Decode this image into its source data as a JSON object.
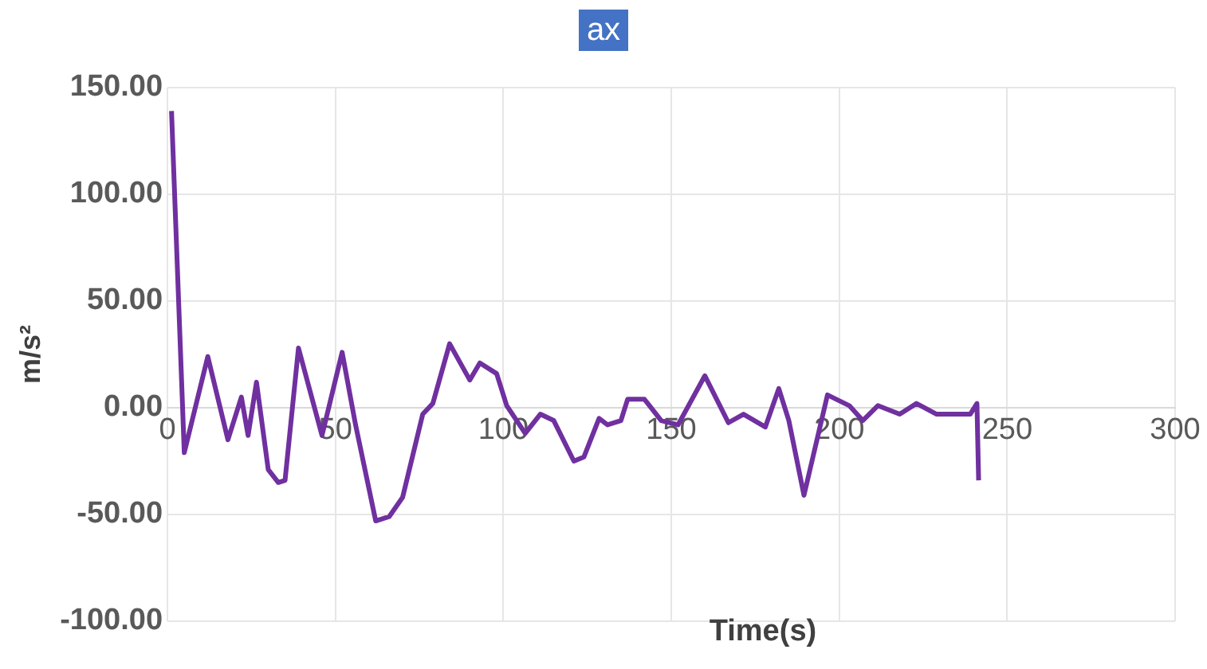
{
  "chart_data": {
    "type": "line",
    "title": "ax",
    "xlabel": "Time(s)",
    "ylabel": "m/s²",
    "x": [
      1.2,
      5,
      12,
      18,
      22,
      24,
      26.5,
      30,
      33,
      35,
      39,
      46,
      52,
      56,
      62,
      66,
      70,
      76,
      79,
      84,
      90,
      93,
      98,
      101,
      106.5,
      111,
      115,
      121,
      124,
      128.5,
      131,
      135,
      137,
      142,
      147,
      152,
      160,
      167,
      171.5,
      178,
      182,
      185,
      189.5,
      196.5,
      203,
      207,
      211.5,
      218,
      223,
      229,
      239,
      241,
      241.5
    ],
    "series": [
      {
        "color": "#7030a0",
        "values": [
          139,
          -21,
          24,
          -15,
          5,
          -13,
          12,
          -29,
          -35,
          -34,
          28,
          -13,
          26,
          -8,
          -53,
          -51,
          -42,
          -3,
          2,
          30,
          13,
          21,
          16,
          1,
          -12,
          -3,
          -6,
          -25,
          -23,
          -5,
          -8,
          -6,
          4,
          4,
          -6,
          -8,
          15,
          -7,
          -3,
          -9,
          9,
          -6,
          -41,
          6,
          1,
          -6,
          1,
          -3,
          2,
          -3,
          -3,
          2,
          -34
        ]
      }
    ],
    "xlim": [
      0,
      300
    ],
    "xticks": [
      0,
      50,
      100,
      150,
      200,
      250,
      300
    ],
    "ylim": [
      -100,
      150
    ],
    "yticks": [
      {
        "value": -100,
        "label": "-100.00"
      },
      {
        "value": -50,
        "label": "-50.00"
      },
      {
        "value": 0,
        "label": "0.00"
      },
      {
        "value": 50,
        "label": "50.00"
      },
      {
        "value": 100,
        "label": "100.00"
      },
      {
        "value": 150,
        "label": "150.00"
      }
    ],
    "grid": true,
    "legend": false,
    "marker": "none",
    "line_style": "solid"
  }
}
